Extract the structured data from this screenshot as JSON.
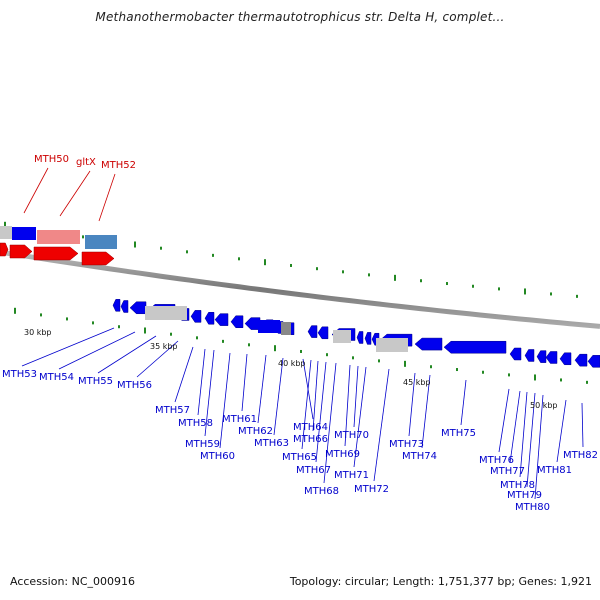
{
  "title": "Methanothermobacter thermautotrophicus str. Delta H, complet...",
  "footer": {
    "accession": "Accession: NC_000916",
    "summary": "Topology: circular; Length: 1,751,377 bp; Genes: 1,921"
  },
  "colors": {
    "forward_gene": "#ee0000",
    "reverse_gene": "#0000ee",
    "rna": "#f08888",
    "steelblue": "#4a86c0",
    "pseudo": "#c8c8c8",
    "backbone": "#888888",
    "tick": "#228822",
    "label_blue": "#0000cc",
    "label_red": "#cc0000"
  },
  "scale_labels": [
    "30 kbp",
    "35 kbp",
    "40 kbp",
    "45 kbp",
    "50 kbp"
  ],
  "top_labels": [
    "MTH50",
    "gltX",
    "MTH52"
  ],
  "bottom_labels": [
    "MTH53",
    "MTH54",
    "MTH55",
    "MTH56",
    "MTH57",
    "MTH58",
    "MTH59",
    "MTH60",
    "MTH61",
    "MTH62",
    "MTH63",
    "MTH64",
    "MTH65",
    "MTH66",
    "MTH67",
    "MTH68",
    "MTH69",
    "MTH70",
    "MTH71",
    "MTH72",
    "MTH73",
    "MTH74",
    "MTH75",
    "MTH76",
    "MTH77",
    "MTH78",
    "MTH79",
    "MTH80",
    "MTH81",
    "MTH82"
  ]
}
